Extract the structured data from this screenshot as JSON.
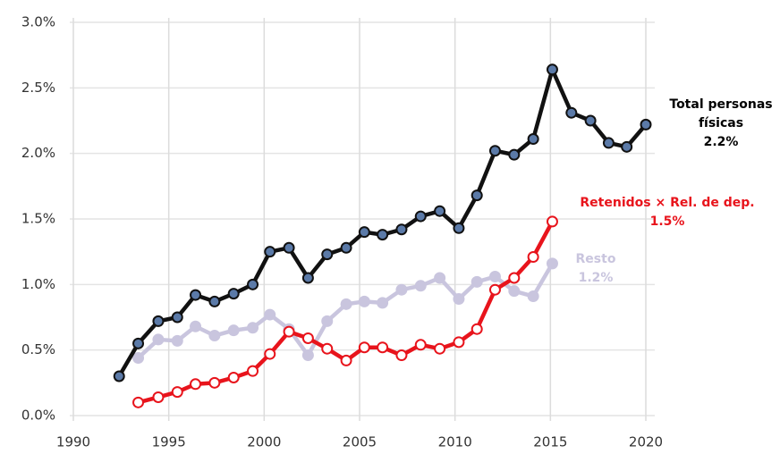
{
  "chart_data": {
    "type": "line",
    "xlim": [
      1990,
      2020
    ],
    "xticks": [
      1990,
      1995,
      2000,
      2005,
      2010,
      2015,
      2020
    ],
    "ylim": [
      0,
      3
    ],
    "yticks": [
      {
        "value": 0,
        "label": "0.0%"
      },
      {
        "value": 0.5,
        "label": "0.5%"
      },
      {
        "value": 1,
        "label": "1.0%"
      },
      {
        "value": 1.5,
        "label": "1.5%"
      },
      {
        "value": 2,
        "label": "2.0%"
      },
      {
        "value": 2.5,
        "label": "2.5%"
      },
      {
        "value": 3,
        "label": "3.0%"
      }
    ],
    "grid": true,
    "series": [
      {
        "name": [
          "Resto"
        ],
        "end_label": "1.2%",
        "color": "#c9c5de",
        "marker_fill": "#c9c5de",
        "x": [
          1993.4,
          1994.45,
          1995.45,
          1996.4,
          1997.4,
          1998.4,
          1999.4,
          2000.3,
          2001.3,
          2002.3,
          2003.3,
          2004.3,
          2005.25,
          2006.2,
          2007.2,
          2008.2,
          2009.2,
          2010.2,
          2011.15,
          2012.1,
          2013.1,
          2014.1,
          2015.1
        ],
        "values": [
          0.44,
          0.58,
          0.57,
          0.68,
          0.61,
          0.65,
          0.67,
          0.77,
          0.66,
          0.46,
          0.72,
          0.85,
          0.87,
          0.86,
          0.96,
          0.99,
          1.05,
          0.89,
          1.02,
          1.06,
          0.95,
          0.91,
          1.16
        ]
      },
      {
        "name": [
          "Retenidos × Rel. de dep."
        ],
        "end_label": "1.5%",
        "color": "#e8141c",
        "marker_fill": "#ffffff",
        "x": [
          1993.4,
          1994.45,
          1995.45,
          1996.4,
          1997.4,
          1998.4,
          1999.4,
          2000.3,
          2001.3,
          2002.3,
          2003.3,
          2004.3,
          2005.25,
          2006.2,
          2007.2,
          2008.2,
          2009.2,
          2010.2,
          2011.15,
          2012.1,
          2013.1,
          2014.1,
          2015.1
        ],
        "values": [
          0.1,
          0.14,
          0.18,
          0.24,
          0.25,
          0.29,
          0.34,
          0.47,
          0.64,
          0.59,
          0.51,
          0.42,
          0.52,
          0.52,
          0.46,
          0.54,
          0.51,
          0.56,
          0.66,
          0.96,
          1.05,
          1.21,
          1.48
        ]
      },
      {
        "name": [
          "Total personas",
          "físicas"
        ],
        "end_label": "2.2%",
        "color": "#111111",
        "marker_fill": "#5b7aa8",
        "x": [
          1992.4,
          1993.4,
          1994.45,
          1995.45,
          1996.4,
          1997.4,
          1998.4,
          1999.4,
          2000.3,
          2001.3,
          2002.3,
          2003.3,
          2004.3,
          2005.25,
          2006.2,
          2007.2,
          2008.2,
          2009.2,
          2010.2,
          2011.15,
          2012.1,
          2013.1,
          2014.1,
          2015.1,
          2016.1,
          2017.1,
          2018.05,
          2019.0,
          2020.0
        ],
        "values": [
          0.3,
          0.55,
          0.72,
          0.75,
          0.92,
          0.87,
          0.93,
          1.0,
          1.25,
          1.28,
          1.05,
          1.23,
          1.28,
          1.4,
          1.38,
          1.42,
          1.52,
          1.56,
          1.43,
          1.68,
          2.02,
          1.99,
          2.11,
          2.64,
          2.31,
          2.25,
          2.08,
          2.05,
          2.22
        ]
      }
    ]
  }
}
